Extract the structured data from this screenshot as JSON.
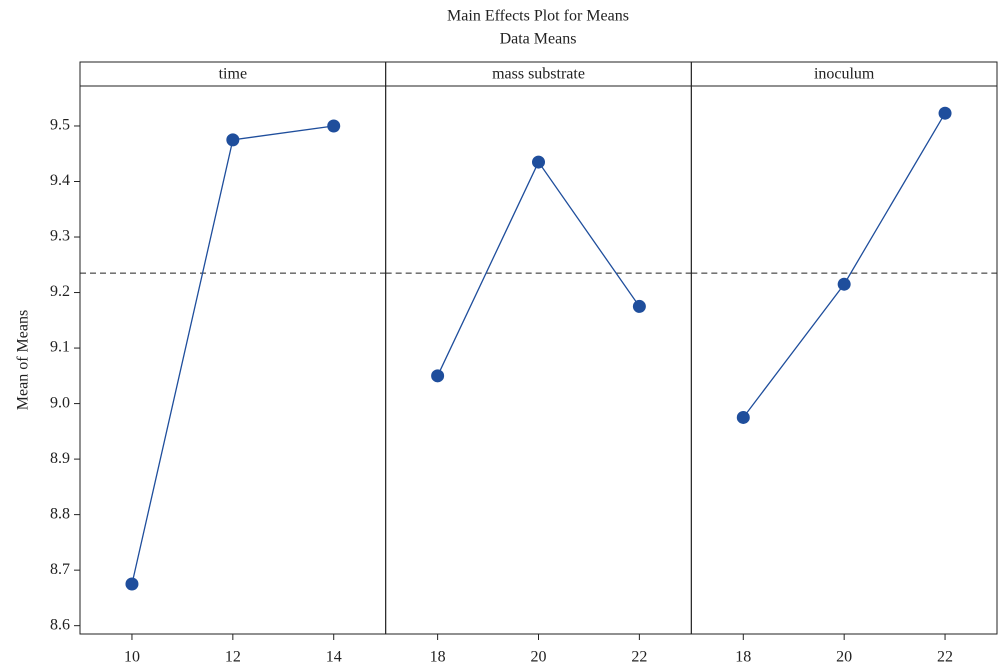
{
  "chart_data": {
    "type": "line",
    "title": "Main Effects Plot for Means",
    "subtitle": "Data Means",
    "y_label": "Mean of Means",
    "ylim": [
      8.585,
      9.572
    ],
    "yticks": [
      8.6,
      8.7,
      8.8,
      8.9,
      {
        "value": 9,
        "label": "9.0"
      },
      9.1,
      9.2,
      9.3,
      9.4,
      9.5
    ],
    "reference_line": 9.235,
    "color": "#1f4e9c",
    "panels": [
      {
        "title": "time",
        "x": [
          10,
          12,
          14
        ],
        "values": [
          8.675,
          9.475,
          9.5
        ],
        "xlim": [
          8.97,
          15.03
        ],
        "xticks": [
          10,
          12,
          14
        ]
      },
      {
        "title": "mass substrate",
        "x": [
          18,
          20,
          22
        ],
        "values": [
          9.05,
          9.435,
          9.175
        ],
        "xlim": [
          16.97,
          23.03
        ],
        "xticks": [
          18,
          20,
          22
        ]
      },
      {
        "title": "inoculum",
        "x": [
          18,
          20,
          22
        ],
        "values": [
          8.975,
          9.215,
          9.523
        ],
        "xlim": [
          16.97,
          23.03
        ],
        "xticks": [
          18,
          20,
          22
        ]
      }
    ]
  }
}
